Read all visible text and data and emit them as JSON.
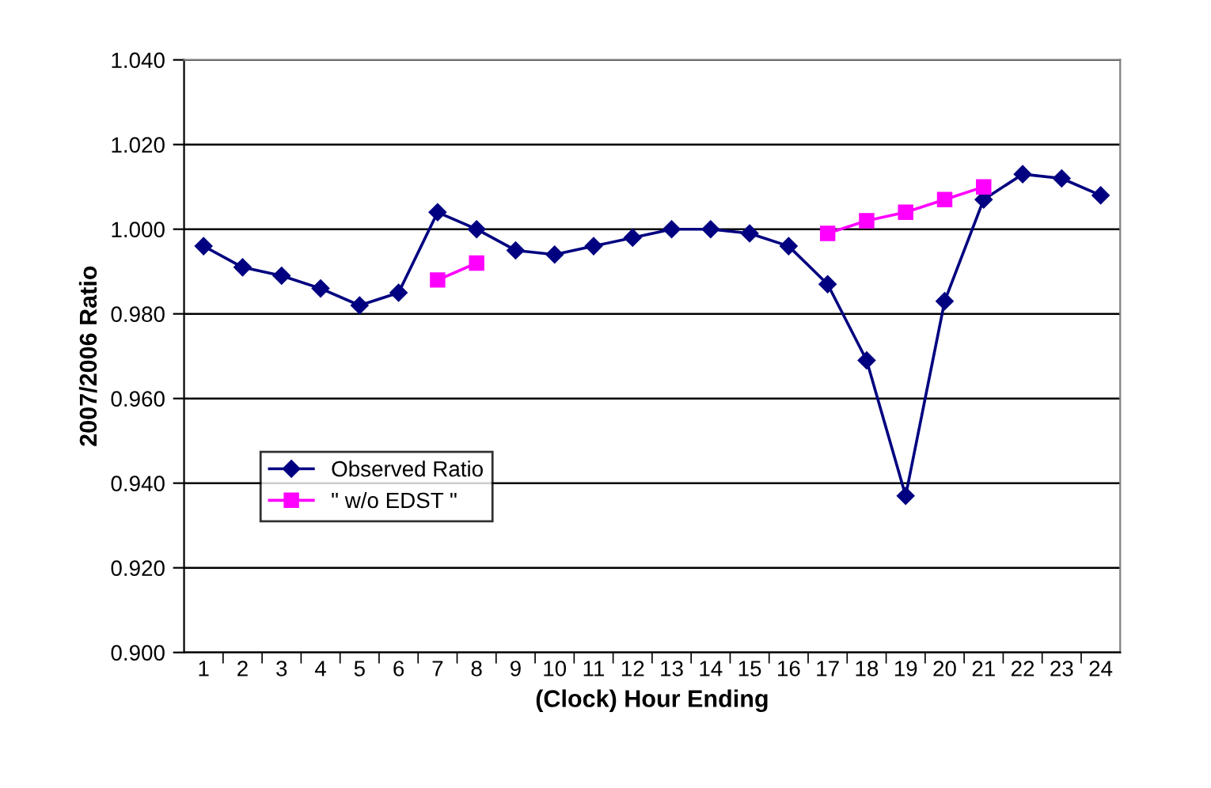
{
  "chart_data": {
    "type": "line",
    "xlabel": "(Clock) Hour Ending",
    "ylabel": "2007/2006 Ratio",
    "categories": [
      "1",
      "2",
      "3",
      "4",
      "5",
      "6",
      "7",
      "8",
      "9",
      "10",
      "11",
      "12",
      "13",
      "14",
      "15",
      "16",
      "17",
      "18",
      "19",
      "20",
      "21",
      "22",
      "23",
      "24"
    ],
    "series": [
      {
        "name": "Observed Ratio",
        "color": "#000080",
        "marker": "diamond",
        "values": [
          0.996,
          0.991,
          0.989,
          0.986,
          0.982,
          0.985,
          1.004,
          1.0,
          0.995,
          0.994,
          0.996,
          0.998,
          1.0,
          1.0,
          0.999,
          0.996,
          0.987,
          0.969,
          0.937,
          0.983,
          1.007,
          1.013,
          1.012,
          1.008
        ]
      },
      {
        "name": "\" w/o EDST \"",
        "color": "#ff00ff",
        "marker": "square",
        "values": [
          null,
          null,
          null,
          null,
          null,
          null,
          0.988,
          0.992,
          null,
          null,
          null,
          null,
          null,
          null,
          null,
          null,
          0.999,
          1.002,
          1.004,
          1.007,
          1.01,
          null,
          null,
          null
        ]
      }
    ],
    "ylim": [
      0.9,
      1.04
    ],
    "yticks": [
      {
        "value": 0.9,
        "label": "0.900"
      },
      {
        "value": 0.92,
        "label": "0.920"
      },
      {
        "value": 0.94,
        "label": "0.940"
      },
      {
        "value": 0.96,
        "label": "0.960"
      },
      {
        "value": 0.98,
        "label": "0.980"
      },
      {
        "value": 1.0,
        "label": "1.000"
      },
      {
        "value": 1.02,
        "label": "1.020"
      },
      {
        "value": 1.04,
        "label": "1.040"
      }
    ],
    "grid": "y",
    "legend": "left"
  }
}
